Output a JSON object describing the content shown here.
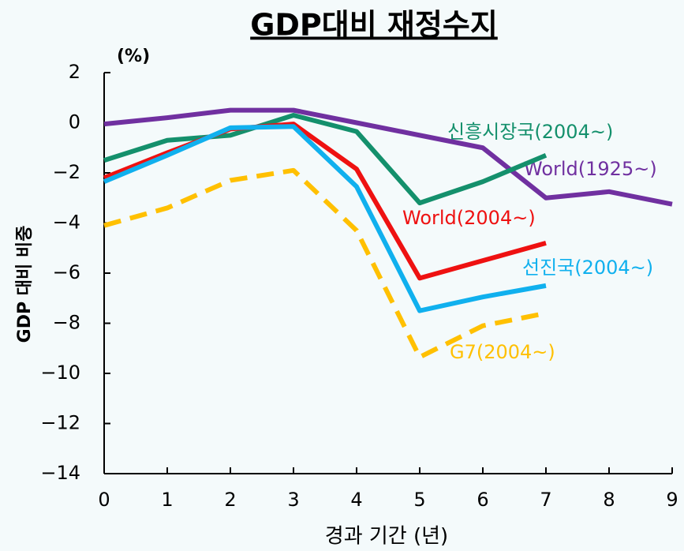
{
  "chart_data": {
    "type": "line",
    "title": "GDP대비 재정수지",
    "y_unit": "(%)",
    "x_label": "경과 기간 (년)",
    "y_label": "GDP 대비 비중",
    "x": [
      0,
      1,
      2,
      3,
      4,
      5,
      6,
      7,
      8,
      9
    ],
    "xlim": [
      0,
      9
    ],
    "xticks": [
      0,
      1,
      2,
      3,
      4,
      5,
      6,
      7,
      8,
      9
    ],
    "ylim": [
      -14,
      2
    ],
    "yticks": [
      {
        "value": -14,
        "label": "−14"
      },
      {
        "value": -12,
        "label": "−12"
      },
      {
        "value": -10,
        "label": "−10"
      },
      {
        "value": -8,
        "label": "−8"
      },
      {
        "value": -6,
        "label": "−6"
      },
      {
        "value": -4,
        "label": "−4"
      },
      {
        "value": -2,
        "label": "−2"
      },
      0,
      2
    ],
    "grid": false,
    "series": [
      {
        "name": "World(1925~)",
        "color": "#7030a0",
        "dashed": false,
        "values": [
          -0.05,
          0.2,
          0.5,
          0.5,
          0.0,
          -0.5,
          -1.0,
          -3.0,
          -2.75,
          -3.25
        ]
      },
      {
        "name": "신흥시장국(2004~)",
        "color": "#14906c",
        "dashed": false,
        "values": [
          -1.5,
          -0.7,
          -0.5,
          0.3,
          -0.35,
          -3.2,
          -2.35,
          -1.3,
          null,
          null
        ]
      },
      {
        "name": "World(2004~)",
        "color": "#ee1111",
        "dashed": false,
        "values": [
          -2.2,
          -1.2,
          -0.25,
          -0.05,
          -1.85,
          -6.2,
          -5.5,
          -4.8,
          null,
          null
        ]
      },
      {
        "name": "선진국(2004~)",
        "color": "#10b0ee",
        "dashed": false,
        "values": [
          -2.35,
          -1.3,
          -0.2,
          -0.15,
          -2.55,
          -7.5,
          -6.95,
          -6.5,
          null,
          null
        ]
      },
      {
        "name": "G7(2004~)",
        "color": "#ffc000",
        "dashed": true,
        "values": [
          -4.1,
          -3.4,
          -2.3,
          -1.9,
          -4.3,
          -9.35,
          -8.1,
          -7.6,
          null,
          null
        ]
      }
    ]
  }
}
